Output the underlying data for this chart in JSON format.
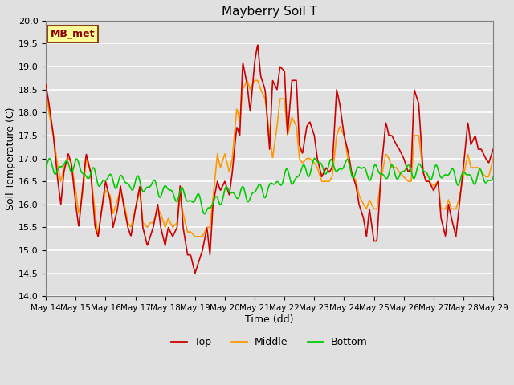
{
  "title": "Mayberry Soil T",
  "xlabel": "Time (dd)",
  "ylabel": "Soil Temperature (C)",
  "ylim": [
    14.0,
    20.0
  ],
  "yticks": [
    14.0,
    14.5,
    15.0,
    15.5,
    16.0,
    16.5,
    17.0,
    17.5,
    18.0,
    18.5,
    19.0,
    19.5,
    20.0
  ],
  "background_color": "#e0e0e0",
  "legend_label": "MB_met",
  "legend_box_facecolor": "#ffff99",
  "legend_box_edgecolor": "#8B4513",
  "top_color": "#cc0000",
  "middle_color": "#ff9900",
  "bottom_color": "#00cc00",
  "line_width": 1.2,
  "xtick_labels": [
    "May 14",
    "May 15",
    "May 16",
    "May 17",
    "May 18",
    "May 19",
    "May 20",
    "May 21",
    "May 22",
    "May 23",
    "May 24",
    "May 25",
    "May 26",
    "May 27",
    "May 28",
    "May 29"
  ]
}
